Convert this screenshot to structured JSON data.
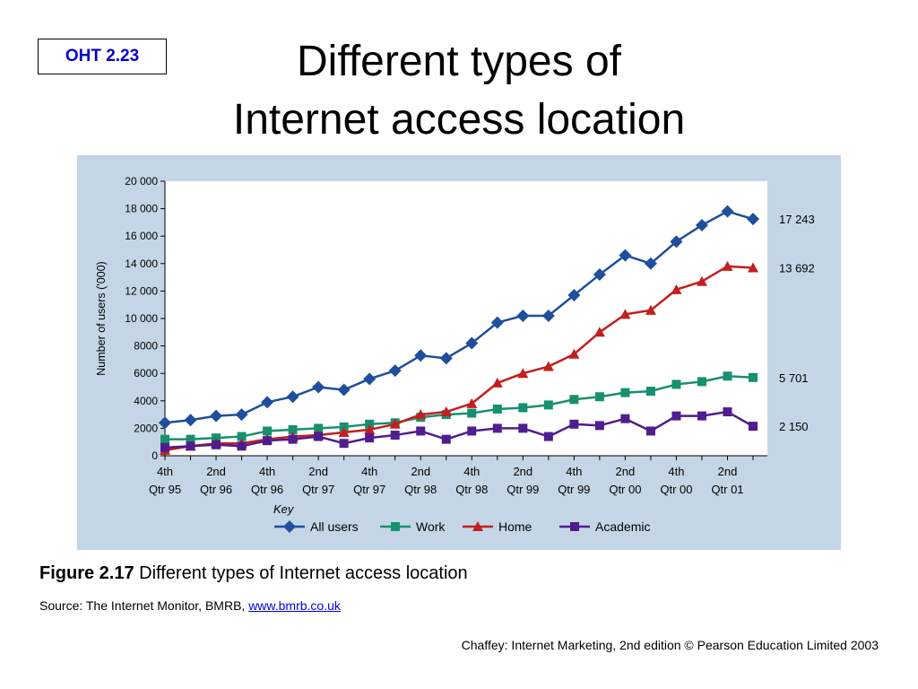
{
  "slide": {
    "label": "OHT 2.23",
    "title_line1": "Different types of",
    "title_line2": "Internet access location",
    "caption_bold": "Figure 2.17",
    "caption_text": " Different types of Internet access location",
    "source_prefix": "Source: The Internet Monitor, BMRB, ",
    "source_link": "www.bmrb.co.uk",
    "credit": "Chaffey: Internet Marketing, 2nd edition © Pearson Education Limited 2003",
    "link_color": "#0000ee",
    "label_color": "#0000cc"
  },
  "chart_data": {
    "type": "line",
    "title": "",
    "xlabel": "",
    "ylabel": "Number of users ('000)",
    "ylim": [
      0,
      20000
    ],
    "yticks": [
      "0",
      "2000",
      "4000",
      "6000",
      "8000",
      "10 000",
      "12 000",
      "14 000",
      "16 000",
      "18 000",
      "20 000"
    ],
    "ytick_values": [
      0,
      2000,
      4000,
      6000,
      8000,
      10000,
      12000,
      14000,
      16000,
      18000,
      20000
    ],
    "xtick_labels": [
      [
        "4th",
        "Qtr 95"
      ],
      [
        "2nd",
        "Qtr 96"
      ],
      [
        "4th",
        "Qtr 96"
      ],
      [
        "2nd",
        "Qtr 97"
      ],
      [
        "4th",
        "Qtr 97"
      ],
      [
        "2nd",
        "Qtr 98"
      ],
      [
        "4th",
        "Qtr 98"
      ],
      [
        "2nd",
        "Qtr 99"
      ],
      [
        "4th",
        "Qtr 99"
      ],
      [
        "2nd",
        "Qtr 00"
      ],
      [
        "4th",
        "Qtr 00"
      ],
      [
        "2nd",
        "Qtr 01"
      ]
    ],
    "xtick_positions": [
      0,
      2,
      4,
      6,
      8,
      10,
      12,
      14,
      16,
      18,
      20,
      22
    ],
    "x_count": 24,
    "grid": false,
    "legend_title": "Key",
    "legend_position": "bottom",
    "series": [
      {
        "name": "All users",
        "color": "#1f4e9c",
        "marker": "diamond",
        "end_label": "17 243",
        "values": [
          2400,
          2600,
          2900,
          3000,
          3900,
          4300,
          5000,
          4800,
          5600,
          6200,
          7300,
          7100,
          8200,
          9700,
          10200,
          10200,
          11700,
          13200,
          14600,
          14000,
          15600,
          16800,
          17800,
          17243
        ]
      },
      {
        "name": "Work",
        "color": "#17906e",
        "marker": "square",
        "end_label": "5 701",
        "values": [
          1200,
          1200,
          1300,
          1400,
          1800,
          1900,
          2000,
          2100,
          2300,
          2400,
          2800,
          3000,
          3100,
          3400,
          3500,
          3700,
          4100,
          4300,
          4600,
          4700,
          5200,
          5400,
          5800,
          5701
        ]
      },
      {
        "name": "Home",
        "color": "#c41e1e",
        "marker": "triangle",
        "end_label": "13 692",
        "values": [
          400,
          700,
          900,
          900,
          1200,
          1400,
          1500,
          1700,
          1900,
          2300,
          3000,
          3200,
          3800,
          5300,
          6000,
          6500,
          7400,
          9000,
          10300,
          10600,
          12100,
          12700,
          13800,
          13692
        ]
      },
      {
        "name": "Academic",
        "color": "#4f1d8e",
        "marker": "square",
        "end_label": "2 150",
        "values": [
          600,
          700,
          800,
          700,
          1100,
          1200,
          1400,
          900,
          1300,
          1500,
          1800,
          1200,
          1800,
          2000,
          2000,
          1400,
          2300,
          2200,
          2700,
          1800,
          2900,
          2900,
          3200,
          2150
        ]
      }
    ]
  }
}
